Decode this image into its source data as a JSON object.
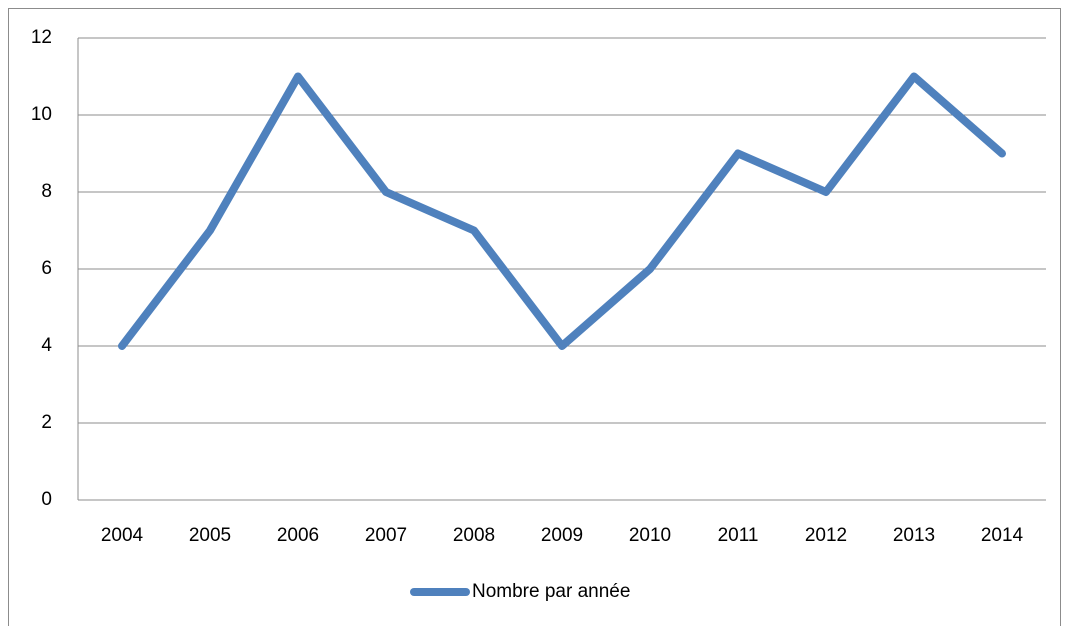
{
  "chart_data": {
    "type": "line",
    "categories": [
      "2004",
      "2005",
      "2006",
      "2007",
      "2008",
      "2009",
      "2010",
      "2011",
      "2012",
      "2013",
      "2014"
    ],
    "series": [
      {
        "name": "Nombre par année",
        "color": "#4f81bd",
        "values": [
          4,
          7,
          11,
          8,
          7,
          4,
          6,
          9,
          8,
          11,
          9
        ]
      }
    ],
    "ylim": [
      0,
      12
    ],
    "yticks": [
      0,
      2,
      4,
      6,
      8,
      10,
      12
    ],
    "grid": true,
    "legend": "bottom"
  }
}
